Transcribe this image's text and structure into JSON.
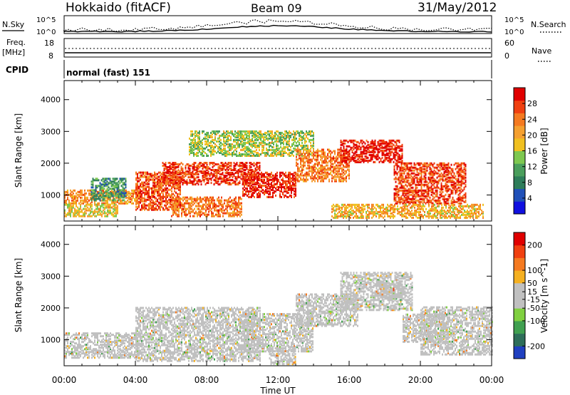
{
  "header": {
    "station": "Hokkaido (fitACF)",
    "beam": "Beam 09",
    "date": "31/May/2012"
  },
  "strip": {
    "nsky_label": "N.Sky",
    "nsearch_label": "N.Search",
    "noise_ticks_left": [
      "10^5",
      "10^0"
    ],
    "noise_ticks_right": [
      "10^5",
      "10^0"
    ],
    "freq_label": "Freq.",
    "freq_unit": "[MHz]",
    "freq_ticks": [
      "18",
      "8"
    ],
    "nave_label": "Nave",
    "nave_ticks": [
      "60",
      "0"
    ],
    "cpid_label": "CPID",
    "cpid_value": "normal (fast) 151"
  },
  "chart_data": [
    {
      "type": "heatmap",
      "panel": "power",
      "ylabel": "Slant Range [km]",
      "yticks": [
        1000,
        2000,
        3000,
        4000
      ],
      "ylim": [
        180,
        4600
      ],
      "colorbar_label": "Power [dB]",
      "colorbar_ticks": [
        4,
        8,
        12,
        16,
        20,
        24,
        28
      ],
      "colorbar_range": [
        0,
        32
      ],
      "colors": [
        "#1010e0",
        "#2050b8",
        "#2e7d5a",
        "#4a9e5c",
        "#7ec850",
        "#f0c020",
        "#f5a030",
        "#f57a20",
        "#f04010",
        "#e00000"
      ],
      "regions": [
        {
          "t": [
            0,
            4.3
          ],
          "r": [
            700,
            1150
          ],
          "level": 22
        },
        {
          "t": [
            0,
            3.0
          ],
          "r": [
            300,
            700
          ],
          "level": 18
        },
        {
          "t": [
            1.5,
            3.5
          ],
          "r": [
            800,
            1500
          ],
          "level": 10
        },
        {
          "t": [
            4.0,
            6.5
          ],
          "r": [
            500,
            1700
          ],
          "level": 26
        },
        {
          "t": [
            5.5,
            11
          ],
          "r": [
            1300,
            2000
          ],
          "level": 28
        },
        {
          "t": [
            6,
            10
          ],
          "r": [
            300,
            900
          ],
          "level": 24
        },
        {
          "t": [
            7,
            14
          ],
          "r": [
            2200,
            3000
          ],
          "level": 15
        },
        {
          "t": [
            10,
            13
          ],
          "r": [
            900,
            1700
          ],
          "level": 29
        },
        {
          "t": [
            13,
            16
          ],
          "r": [
            1400,
            2400
          ],
          "level": 24
        },
        {
          "t": [
            15.5,
            19
          ],
          "r": [
            2000,
            2700
          ],
          "level": 30
        },
        {
          "t": [
            18.5,
            22.5
          ],
          "r": [
            700,
            2000
          ],
          "level": 27
        },
        {
          "t": [
            15,
            23.5
          ],
          "r": [
            250,
            700
          ],
          "level": 20
        }
      ]
    },
    {
      "type": "heatmap",
      "panel": "velocity",
      "ylabel": "Slant Range [km]",
      "yticks": [
        1000,
        2000,
        3000,
        4000
      ],
      "ylim": [
        180,
        4600
      ],
      "colorbar_label": "Velocity [m s^-1]",
      "colorbar_ticks": [
        200,
        100,
        50,
        15,
        -15,
        -50,
        -100,
        -200
      ],
      "colorbar_range": [
        -250,
        250
      ],
      "colors": [
        "#2040c0",
        "#2e6e5a",
        "#40a050",
        "#80d040",
        "#c0c0c0",
        "#c0c0c0",
        "#f5b020",
        "#f57a20",
        "#f04010",
        "#e00000"
      ],
      "regions": [
        {
          "t": [
            0,
            4.3
          ],
          "r": [
            400,
            1200
          ],
          "level": 0
        },
        {
          "t": [
            4.0,
            11
          ],
          "r": [
            300,
            2000
          ],
          "level": 0
        },
        {
          "t": [
            10,
            14
          ],
          "r": [
            600,
            1800
          ],
          "level": 0
        },
        {
          "t": [
            13,
            16.5
          ],
          "r": [
            1400,
            2400
          ],
          "level": 0
        },
        {
          "t": [
            15.5,
            19.5
          ],
          "r": [
            1900,
            3100
          ],
          "level": 0
        },
        {
          "t": [
            17.5,
            19
          ],
          "r": [
            2300,
            2800
          ],
          "level": 40
        },
        {
          "t": [
            19,
            21.5
          ],
          "r": [
            900,
            1800
          ],
          "level": 35
        },
        {
          "t": [
            20,
            24
          ],
          "r": [
            500,
            2000
          ],
          "level": 0
        },
        {
          "t": [
            11.5,
            13
          ],
          "r": [
            200,
            700
          ],
          "level": 30
        }
      ]
    }
  ],
  "time_axis": {
    "label": "Time UT",
    "ticks": [
      "00:00",
      "04:00",
      "08:00",
      "12:00",
      "16:00",
      "20:00",
      "00:00"
    ],
    "range_hours": [
      0,
      24
    ]
  }
}
